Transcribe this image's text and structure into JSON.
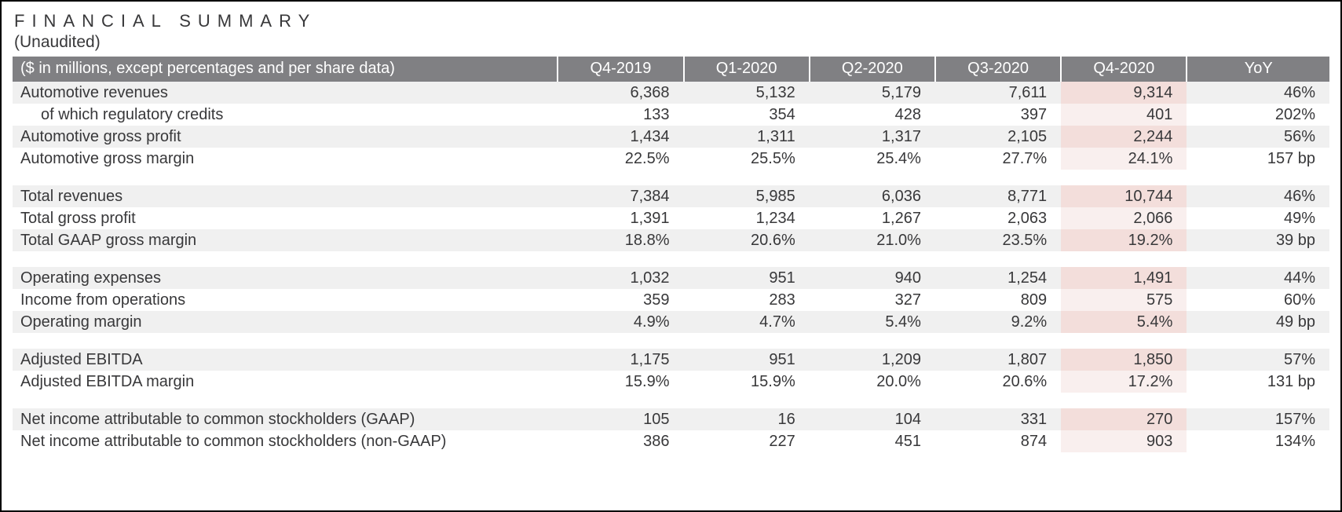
{
  "title": "FINANCIAL SUMMARY",
  "subtitle": "(Unaudited)",
  "header": {
    "label": "($ in millions, except percentages and per share data)",
    "cols": [
      "Q4-2019",
      "Q1-2020",
      "Q2-2020",
      "Q3-2020",
      "Q4-2020",
      "YoY"
    ]
  },
  "highlight_col_index": 4,
  "colors": {
    "header_bg": "#808083",
    "header_text": "#ffffff",
    "stripe_bg": "#f0f0f0",
    "highlight_stripe": "#f3dedb",
    "highlight_plain": "#f9efee",
    "text": "#38383a",
    "border": "#000000"
  },
  "groups": [
    {
      "rows": [
        {
          "label": "Automotive revenues",
          "values": [
            "6,368",
            "5,132",
            "5,179",
            "7,611",
            "9,314",
            "46%"
          ]
        },
        {
          "label": "of which regulatory credits",
          "indent": true,
          "values": [
            "133",
            "354",
            "428",
            "397",
            "401",
            "202%"
          ]
        },
        {
          "label": "Automotive gross profit",
          "values": [
            "1,434",
            "1,311",
            "1,317",
            "2,105",
            "2,244",
            "56%"
          ]
        },
        {
          "label": "Automotive gross margin",
          "values": [
            "22.5%",
            "25.5%",
            "25.4%",
            "27.7%",
            "24.1%",
            "157 bp"
          ]
        }
      ]
    },
    {
      "rows": [
        {
          "label": "Total revenues",
          "values": [
            "7,384",
            "5,985",
            "6,036",
            "8,771",
            "10,744",
            "46%"
          ]
        },
        {
          "label": "Total gross profit",
          "values": [
            "1,391",
            "1,234",
            "1,267",
            "2,063",
            "2,066",
            "49%"
          ]
        },
        {
          "label": "Total GAAP gross margin",
          "values": [
            "18.8%",
            "20.6%",
            "21.0%",
            "23.5%",
            "19.2%",
            "39 bp"
          ]
        }
      ]
    },
    {
      "rows": [
        {
          "label": "Operating expenses",
          "values": [
            "1,032",
            "951",
            "940",
            "1,254",
            "1,491",
            "44%"
          ]
        },
        {
          "label": "Income from operations",
          "values": [
            "359",
            "283",
            "327",
            "809",
            "575",
            "60%"
          ]
        },
        {
          "label": "Operating margin",
          "values": [
            "4.9%",
            "4.7%",
            "5.4%",
            "9.2%",
            "5.4%",
            "49 bp"
          ]
        }
      ]
    },
    {
      "rows": [
        {
          "label": "Adjusted EBITDA",
          "values": [
            "1,175",
            "951",
            "1,209",
            "1,807",
            "1,850",
            "57%"
          ]
        },
        {
          "label": "Adjusted EBITDA margin",
          "values": [
            "15.9%",
            "15.9%",
            "20.0%",
            "20.6%",
            "17.2%",
            "131 bp"
          ]
        }
      ]
    },
    {
      "rows": [
        {
          "label": "Net income attributable to common stockholders (GAAP)",
          "values": [
            "105",
            "16",
            "104",
            "331",
            "270",
            "157%"
          ]
        },
        {
          "label": "Net income attributable to common stockholders (non-GAAP)",
          "values": [
            "386",
            "227",
            "451",
            "874",
            "903",
            "134%"
          ]
        }
      ]
    }
  ]
}
